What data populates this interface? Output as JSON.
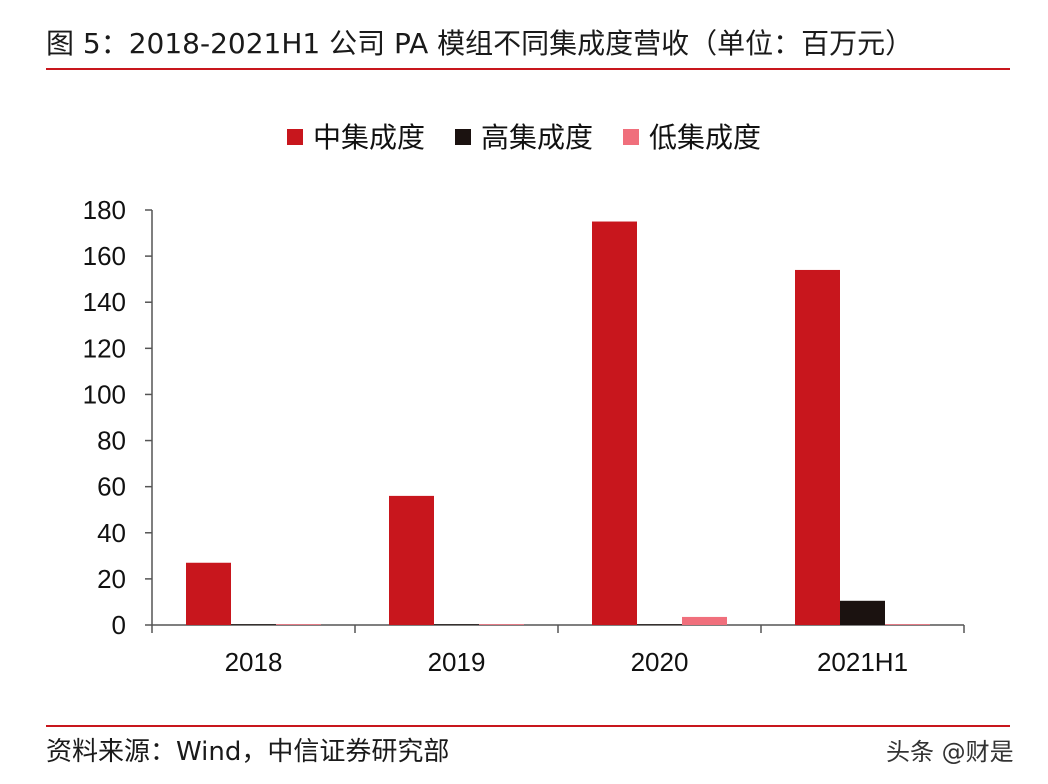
{
  "figure": {
    "title": "图 5：2018-2021H1 公司 PA 模组不同集成度营收（单位：百万元）",
    "source": "资料来源：Wind，中信证券研究部",
    "watermark": "头条 @财是"
  },
  "colors": {
    "accent_rule": "#c8161d",
    "mid": "#c8161d",
    "high": "#1b1210",
    "low": "#f06f7c"
  },
  "chart_data": {
    "type": "bar",
    "categories": [
      "2018",
      "2019",
      "2020",
      "2021H1"
    ],
    "series": [
      {
        "name": "中集成度",
        "color": "#c8161d",
        "values": [
          27,
          56,
          175,
          154
        ]
      },
      {
        "name": "高集成度",
        "color": "#1b1210",
        "values": [
          0,
          0,
          0,
          10.5
        ]
      },
      {
        "name": "低集成度",
        "color": "#f06f7c",
        "values": [
          0,
          0,
          3.5,
          0
        ]
      }
    ],
    "ylim": [
      0,
      180
    ],
    "yticks": [
      0,
      20,
      40,
      60,
      80,
      100,
      120,
      140,
      160,
      180
    ],
    "xlabel": "",
    "ylabel": "",
    "legend_position": "top-center",
    "grid": false
  }
}
